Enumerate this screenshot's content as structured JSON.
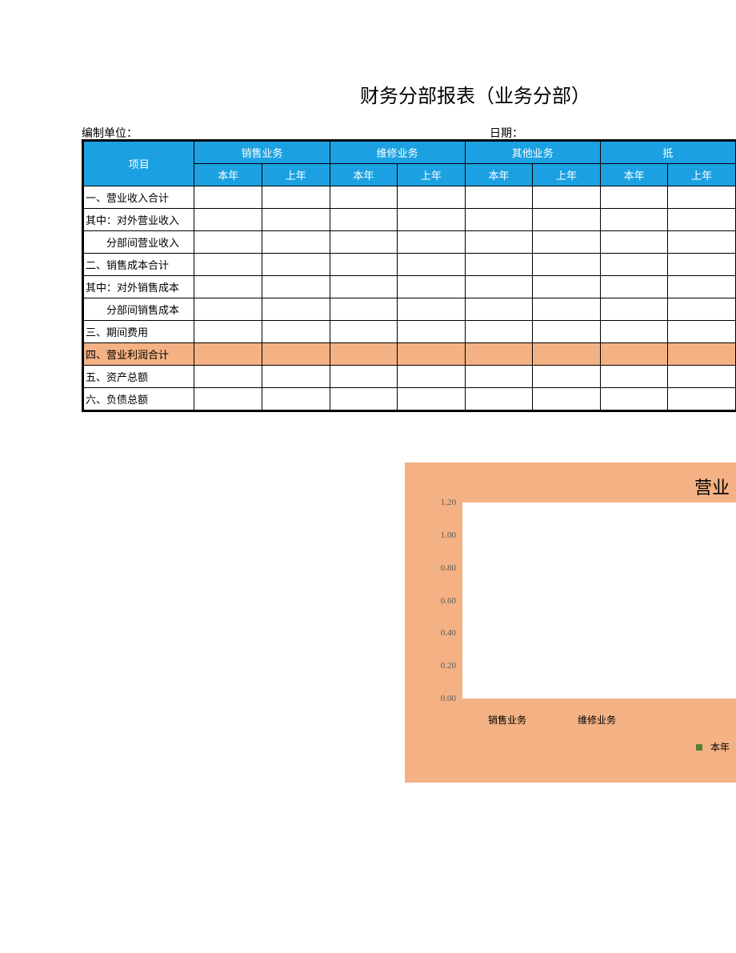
{
  "title": "财务分部报表（业务分部）",
  "meta": {
    "unit_label": "编制单位：",
    "date_label": "日期："
  },
  "table": {
    "header": {
      "item_label": "项目",
      "groups": [
        "销售业务",
        "维修业务",
        "其他业务",
        "抵"
      ],
      "sub_year_current": "本年",
      "sub_year_prev": "上年"
    },
    "rows": [
      {
        "label": "一、营业收入合计",
        "indent": false,
        "highlight": false
      },
      {
        "label": "其中：对外营业收入",
        "indent": false,
        "highlight": false
      },
      {
        "label": "分部间营业收入",
        "indent": true,
        "highlight": false
      },
      {
        "label": "二、销售成本合计",
        "indent": false,
        "highlight": false
      },
      {
        "label": "其中：对外销售成本",
        "indent": false,
        "highlight": false
      },
      {
        "label": "分部间销售成本",
        "indent": true,
        "highlight": false
      },
      {
        "label": "三、期间费用",
        "indent": false,
        "highlight": false
      },
      {
        "label": "四、营业利润合计",
        "indent": false,
        "highlight": true
      },
      {
        "label": "五、资产总额",
        "indent": false,
        "highlight": false
      },
      {
        "label": "六、负债总额",
        "indent": false,
        "highlight": false
      }
    ],
    "colors": {
      "header_bg": "#1ba1e2",
      "header_fg": "#ffffff",
      "highlight_bg": "#f4b183",
      "border": "#000000"
    },
    "col_widths": {
      "item": 140,
      "data": 90
    }
  },
  "chart": {
    "type": "bar",
    "title_fragment": "营业",
    "background_color": "#f4b183",
    "plot_bg": "#ffffff",
    "ylim": [
      0.0,
      1.2
    ],
    "ytick_step": 0.2,
    "yticks": [
      "1.20",
      "1.00",
      "0.80",
      "0.60",
      "0.40",
      "0.20",
      "0.00"
    ],
    "categories": [
      "销售业务",
      "维修业务"
    ],
    "series": [
      {
        "name": "本年",
        "color": "#548235",
        "values": [
          0,
          0
        ]
      }
    ],
    "tick_color": "#595959",
    "label_fontsize": 12,
    "title_fontsize": 22
  }
}
